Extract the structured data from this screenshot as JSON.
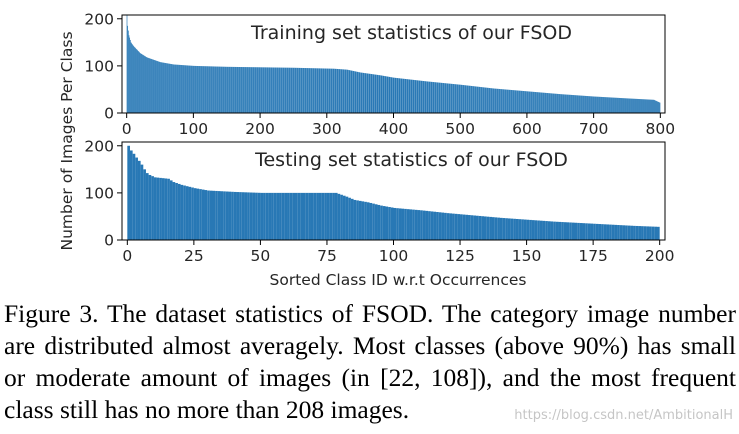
{
  "figure": {
    "shared_ylabel": "Number of Images Per Class",
    "shared_xlabel": "Sorted Class ID w.r.t Occurrences",
    "bar_color": "#2878b5"
  },
  "chart_data": [
    {
      "type": "bar",
      "title": "Training set statistics of our FSOD",
      "xlabel": "",
      "ylabel": "",
      "xlim": [
        -7,
        807
      ],
      "ylim": [
        0,
        208
      ],
      "x_ticks": [
        0,
        100,
        200,
        300,
        400,
        500,
        600,
        700,
        800
      ],
      "y_ticks": [
        0,
        100,
        200
      ],
      "grid": false,
      "n_classes": 800,
      "profile": [
        [
          0,
          208
        ],
        [
          1,
          185
        ],
        [
          3,
          165
        ],
        [
          6,
          150
        ],
        [
          10,
          142
        ],
        [
          20,
          127
        ],
        [
          30,
          118
        ],
        [
          50,
          108
        ],
        [
          70,
          103
        ],
        [
          100,
          100
        ],
        [
          150,
          98
        ],
        [
          200,
          97
        ],
        [
          250,
          96
        ],
        [
          310,
          94
        ],
        [
          330,
          92
        ],
        [
          350,
          86
        ],
        [
          380,
          80
        ],
        [
          400,
          75
        ],
        [
          450,
          67
        ],
        [
          500,
          60
        ],
        [
          550,
          52
        ],
        [
          600,
          46
        ],
        [
          650,
          40
        ],
        [
          700,
          35
        ],
        [
          750,
          31
        ],
        [
          790,
          28
        ],
        [
          799,
          22
        ]
      ]
    },
    {
      "type": "bar",
      "title": "Testing set statistics of our FSOD",
      "xlabel": "Sorted Class ID w.r.t Occurrences",
      "ylabel": "",
      "xlim": [
        -2,
        202
      ],
      "ylim": [
        0,
        208
      ],
      "x_ticks": [
        0,
        25,
        50,
        75,
        100,
        125,
        150,
        175,
        200
      ],
      "y_ticks": [
        0,
        100,
        200
      ],
      "grid": false,
      "n_classes": 200,
      "profile": [
        [
          0,
          200
        ],
        [
          1,
          190
        ],
        [
          2,
          183
        ],
        [
          3,
          175
        ],
        [
          4,
          168
        ],
        [
          5,
          160
        ],
        [
          6,
          150
        ],
        [
          7,
          142
        ],
        [
          8,
          138
        ],
        [
          10,
          133
        ],
        [
          15,
          130
        ],
        [
          17,
          123
        ],
        [
          20,
          117
        ],
        [
          25,
          110
        ],
        [
          30,
          105
        ],
        [
          40,
          102
        ],
        [
          50,
          100
        ],
        [
          60,
          100
        ],
        [
          78,
          100
        ],
        [
          82,
          92
        ],
        [
          85,
          85
        ],
        [
          90,
          80
        ],
        [
          95,
          73
        ],
        [
          100,
          68
        ],
        [
          110,
          63
        ],
        [
          120,
          57
        ],
        [
          130,
          52
        ],
        [
          140,
          47
        ],
        [
          150,
          43
        ],
        [
          160,
          39
        ],
        [
          170,
          36
        ],
        [
          180,
          33
        ],
        [
          190,
          30
        ],
        [
          199,
          28
        ]
      ]
    }
  ],
  "caption": "Figure 3. The dataset statistics of FSOD. The category image number are distributed almost averagely. Most classes (above 90%) has small or moderate amount of images (in [22, 108]), and the most frequent class still has no more than 208 images.",
  "watermark": "https://blog.csdn.net/AmbitionalH"
}
